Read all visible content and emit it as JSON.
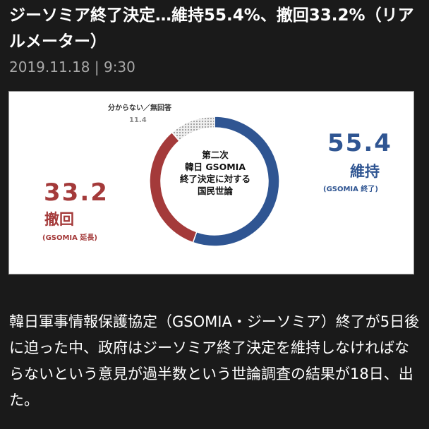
{
  "article": {
    "headline": "ジーソミア終了決定…維持55.4%、撤回33.2%（リアルメーター）",
    "dateline": "2019.11.18 | 9:30",
    "body": "韓日軍事情報保護協定（GSOMIA・ジーソミア）終了が5日後に迫った中、政府はジーソミア終了決定を維持しなければならないという意見が過半数という世論調査の結果が18日、出た。"
  },
  "figure": {
    "center_lines": [
      "第二次",
      "韓日 GSOMIA",
      "終了決定に対する",
      "国民世論"
    ],
    "colors": {
      "maintain": "#2f5592",
      "withdraw": "#a43a3a",
      "unknown": "#c9c9c9"
    }
  },
  "chart_data": {
    "type": "pie",
    "donut": true,
    "slices": [
      {
        "label": "維持",
        "sublabel": "(GSOMIA 終了)",
        "value": 55.4,
        "value_text": "55.4",
        "color": "#2f5592"
      },
      {
        "label": "撤回",
        "sublabel": "(GSOMIA 延長)",
        "value": 33.2,
        "value_text": "33.2",
        "color": "#a43a3a"
      },
      {
        "label": "分からない／無回答",
        "sublabel": "",
        "value": 11.4,
        "value_text": "11.4",
        "color": "#c9c9c9"
      }
    ]
  }
}
